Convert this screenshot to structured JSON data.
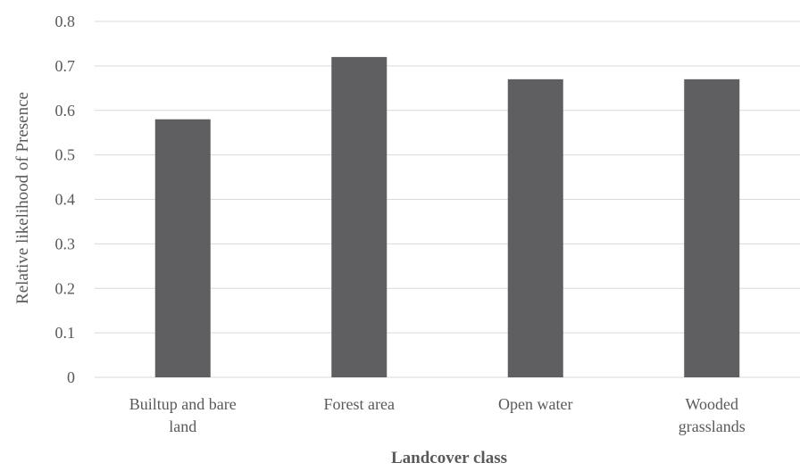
{
  "chart_data": {
    "type": "bar",
    "categories": [
      [
        "Builtup and bare",
        "land"
      ],
      [
        "Forest area"
      ],
      [
        "Open water"
      ],
      [
        "Wooded",
        "grasslands"
      ]
    ],
    "values": [
      0.58,
      0.72,
      0.67,
      0.67
    ],
    "xlabel": "Landcover class",
    "ylabel": "Relative likelihood of Presence",
    "ylim": [
      0,
      0.8
    ],
    "yticks": [
      "0",
      "0.1",
      "0.2",
      "0.3",
      "0.4",
      "0.5",
      "0.6",
      "0.7",
      "0.8"
    ],
    "grid": true,
    "bar_color": "#5f5f61"
  }
}
